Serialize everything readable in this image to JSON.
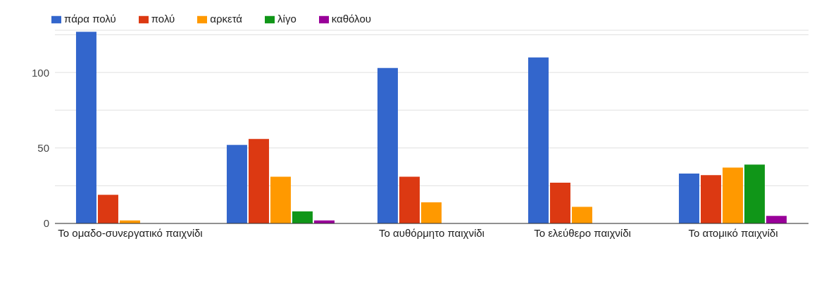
{
  "chart_data": {
    "type": "bar",
    "categories": [
      "Το ομαδο-συνεργατικό παιχνίδι",
      null,
      "Το αυθόρμητο παιχνίδι",
      "Το ελεύθερο παιχνίδι",
      "Το ατομικό παιχνίδι"
    ],
    "series": [
      {
        "name": "πάρα πολύ",
        "color": "#3366cc",
        "values": [
          127,
          52,
          103,
          110,
          33
        ]
      },
      {
        "name": "πολύ",
        "color": "#dc3912",
        "values": [
          19,
          56,
          31,
          27,
          32
        ]
      },
      {
        "name": "αρκετά",
        "color": "#ff9900",
        "values": [
          2,
          31,
          14,
          11,
          37
        ]
      },
      {
        "name": "λίγο",
        "color": "#109618",
        "values": [
          0,
          8,
          0,
          0,
          39
        ]
      },
      {
        "name": "καθόλου",
        "color": "#990099",
        "values": [
          0,
          2,
          0,
          0,
          5
        ]
      }
    ],
    "ylim": [
      0,
      128
    ],
    "yticks": [
      0,
      {
        "value": 25,
        "label": null
      },
      50,
      {
        "value": 75,
        "label": null
      },
      100,
      {
        "value": 125,
        "label": null
      }
    ],
    "grid": "y",
    "legend": "top left"
  }
}
